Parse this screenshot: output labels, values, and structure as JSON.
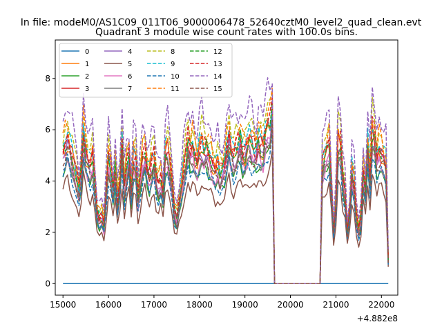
{
  "chart_data": {
    "type": "line",
    "suptitle": "In file: modeM0/AS1C09_011T06_9000006478_52640cztM0_level2_quad_clean.evt",
    "title": "Quadrant 3 module wise count rates with 100.0s bins.",
    "xlabel": "",
    "ylabel": "",
    "x_offset_label": "+4.882e8",
    "xlim": [
      14830,
      22360
    ],
    "ylim": [
      -0.45,
      9.5
    ],
    "x_ticks": [
      15000,
      16000,
      17000,
      18000,
      19000,
      20000,
      21000,
      22000
    ],
    "y_ticks": [
      0,
      2,
      4,
      6,
      8
    ],
    "legend_location": "upper-left",
    "legend_columns": 4,
    "gap_values": {
      "x": [
        19650,
        20650
      ],
      "y": 0
    },
    "series": [
      {
        "name": "0",
        "color": "#1f77b4",
        "style": "solid",
        "base": 0,
        "amp": 0
      },
      {
        "name": "1",
        "color": "#ff7f0e",
        "style": "solid",
        "base": 5.0,
        "amp": 0.38
      },
      {
        "name": "2",
        "color": "#2ca02c",
        "style": "solid",
        "base": 4.4,
        "amp": 0.33
      },
      {
        "name": "3",
        "color": "#d62728",
        "style": "solid",
        "base": 5.2,
        "amp": 0.4
      },
      {
        "name": "4",
        "color": "#9467bd",
        "style": "solid",
        "base": 4.9,
        "amp": 0.37
      },
      {
        "name": "5",
        "color": "#8c564b",
        "style": "solid",
        "base": 3.7,
        "amp": 0.3
      },
      {
        "name": "6",
        "color": "#e377c2",
        "style": "solid",
        "base": 4.6,
        "amp": 0.35
      },
      {
        "name": "7",
        "color": "#7f7f7f",
        "style": "solid",
        "base": 4.5,
        "amp": 0.34
      },
      {
        "name": "8",
        "color": "#bcbd22",
        "style": "dashed",
        "base": 5.8,
        "amp": 0.42
      },
      {
        "name": "9",
        "color": "#17becf",
        "style": "dashed",
        "base": 5.4,
        "amp": 0.4
      },
      {
        "name": "10",
        "color": "#1f77b4",
        "style": "dashed",
        "base": 4.3,
        "amp": 0.33
      },
      {
        "name": "11",
        "color": "#ff7f0e",
        "style": "dashed",
        "base": 5.6,
        "amp": 0.41
      },
      {
        "name": "12",
        "color": "#2ca02c",
        "style": "dashed",
        "base": 5.1,
        "amp": 0.39
      },
      {
        "name": "13",
        "color": "#d62728",
        "style": "dashed",
        "base": 5.3,
        "amp": 0.4
      },
      {
        "name": "14",
        "color": "#9467bd",
        "style": "dashed",
        "base": 6.4,
        "amp": 0.45
      },
      {
        "name": "15",
        "color": "#8c564b",
        "style": "dashed",
        "base": 4.7,
        "amp": 0.36
      }
    ],
    "envelope": [
      [
        15000,
        1.0
      ],
      [
        15050,
        1.05
      ],
      [
        15100,
        1.1
      ],
      [
        15150,
        1.02
      ],
      [
        15200,
        0.95
      ],
      [
        15300,
        0.8
      ],
      [
        15350,
        0.7
      ],
      [
        15400,
        0.85
      ],
      [
        15450,
        1.15
      ],
      [
        15500,
        1.0
      ],
      [
        15550,
        0.92
      ],
      [
        15600,
        0.88
      ],
      [
        15650,
        0.95
      ],
      [
        15700,
        0.75
      ],
      [
        15750,
        0.55
      ],
      [
        15800,
        0.5
      ],
      [
        15850,
        0.52
      ],
      [
        15900,
        0.45
      ],
      [
        15950,
        0.7
      ],
      [
        16000,
        0.95
      ],
      [
        16050,
        0.85
      ],
      [
        16100,
        0.7
      ],
      [
        16150,
        0.9
      ],
      [
        16200,
        0.62
      ],
      [
        16250,
        0.75
      ],
      [
        16300,
        1.05
      ],
      [
        16350,
        0.72
      ],
      [
        16400,
        0.88
      ],
      [
        16450,
        0.98
      ],
      [
        16500,
        0.7
      ],
      [
        16550,
        0.95
      ],
      [
        16600,
        0.92
      ],
      [
        16650,
        0.65
      ],
      [
        16700,
        0.8
      ],
      [
        16750,
        0.95
      ],
      [
        16800,
        1.0
      ],
      [
        16850,
        0.88
      ],
      [
        16900,
        0.82
      ],
      [
        16950,
        0.9
      ],
      [
        17000,
        0.95
      ],
      [
        17050,
        0.8
      ],
      [
        17100,
        0.75
      ],
      [
        17150,
        0.8
      ],
      [
        17200,
        0.68
      ],
      [
        17250,
        0.98
      ],
      [
        17300,
        1.0
      ],
      [
        17350,
        0.88
      ],
      [
        17400,
        0.75
      ],
      [
        17450,
        0.55
      ],
      [
        17500,
        0.5
      ],
      [
        17550,
        0.62
      ],
      [
        17600,
        0.72
      ],
      [
        17650,
        0.85
      ],
      [
        17700,
        0.95
      ],
      [
        17750,
        1.08
      ],
      [
        17800,
        1.0
      ],
      [
        17850,
        1.05
      ],
      [
        17900,
        0.98
      ],
      [
        17950,
        0.92
      ],
      [
        18000,
        1.0
      ],
      [
        18050,
        1.05
      ],
      [
        18100,
        1.0
      ],
      [
        18150,
        1.02
      ],
      [
        18200,
        0.98
      ],
      [
        18250,
        0.95
      ],
      [
        18300,
        0.9
      ],
      [
        18350,
        0.85
      ],
      [
        18400,
        0.9
      ],
      [
        18450,
        0.82
      ],
      [
        18500,
        0.85
      ],
      [
        18550,
        0.9
      ],
      [
        18600,
        1.02
      ],
      [
        18650,
        1.12
      ],
      [
        18700,
        1.0
      ],
      [
        18750,
        0.95
      ],
      [
        18800,
        1.0
      ],
      [
        18850,
        1.05
      ],
      [
        18900,
        1.1
      ],
      [
        18950,
        1.0
      ],
      [
        19000,
        1.0
      ],
      [
        19050,
        1.05
      ],
      [
        19100,
        1.08
      ],
      [
        19150,
        1.05
      ],
      [
        19200,
        1.02
      ],
      [
        19250,
        1.0
      ],
      [
        19300,
        1.08
      ],
      [
        19350,
        1.05
      ],
      [
        19400,
        1.02
      ],
      [
        19450,
        1.12
      ],
      [
        19500,
        1.18
      ],
      [
        19550,
        1.2
      ],
      [
        19600,
        1.35
      ],
      [
        19650,
        0.0
      ],
      [
        20650,
        0.0
      ],
      [
        20700,
        0.9
      ],
      [
        20750,
        0.95
      ],
      [
        20800,
        1.0
      ],
      [
        20850,
        1.05
      ],
      [
        20900,
        0.75
      ],
      [
        20950,
        0.4
      ],
      [
        21000,
        0.62
      ],
      [
        21050,
        1.08
      ],
      [
        21100,
        1.05
      ],
      [
        21150,
        0.8
      ],
      [
        21200,
        0.7
      ],
      [
        21250,
        0.4
      ],
      [
        21300,
        0.55
      ],
      [
        21350,
        0.85
      ],
      [
        21400,
        0.75
      ],
      [
        21450,
        0.5
      ],
      [
        21500,
        0.4
      ],
      [
        21550,
        0.5
      ],
      [
        21600,
        0.85
      ],
      [
        21650,
        0.7
      ],
      [
        21700,
        1.05
      ],
      [
        21750,
        0.8
      ],
      [
        21800,
        1.15
      ],
      [
        21850,
        1.1
      ],
      [
        21900,
        0.95
      ],
      [
        21950,
        1.02
      ],
      [
        22000,
        1.0
      ],
      [
        22050,
        0.95
      ],
      [
        22100,
        0.9
      ],
      [
        22150,
        0.18
      ]
    ]
  }
}
